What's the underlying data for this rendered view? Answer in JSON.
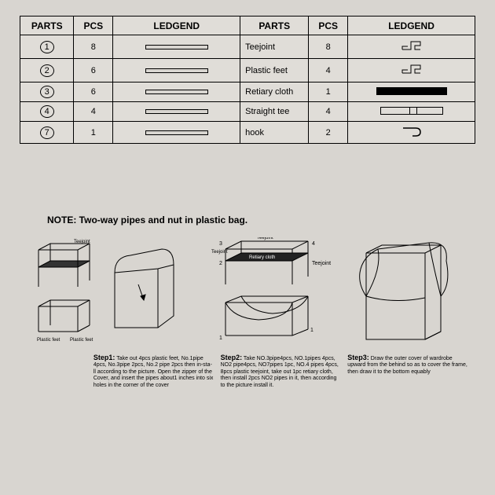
{
  "table": {
    "headers": [
      "PARTS",
      "PCS",
      "LEDGEND",
      "PARTS",
      "PCS",
      "LEDGEND"
    ],
    "rows": [
      {
        "num": "1",
        "pcs": "8",
        "name": "Teejoint",
        "pcs2": "8",
        "legend2": "joint"
      },
      {
        "num": "2",
        "pcs": "6",
        "name": "Plastic feet",
        "pcs2": "4",
        "legend2": "joint"
      },
      {
        "num": "3",
        "pcs": "6",
        "name": "Retiary cloth",
        "pcs2": "1",
        "legend2": "blackbar"
      },
      {
        "num": "4",
        "pcs": "4",
        "name": "Straight tee",
        "pcs2": "4",
        "legend2": "tee"
      },
      {
        "num": "7",
        "pcs": "1",
        "name": "hook",
        "pcs2": "2",
        "legend2": "hook"
      }
    ]
  },
  "note": "NOTE: Two-way pipes and nut in plastic bag.",
  "labels": {
    "teejoint": "Teejoint",
    "plastic_feet": "Plastic feet",
    "retiary_cloth": "Retiary cloth"
  },
  "steps": [
    {
      "label": "Step1:",
      "text": "Take out 4pcs plastic feet, No.1pipe 4pcs, No.3pipe 2pcs, No.2 pipe 2pcs then in-sta-ll according to the picture. Open the zipper of the Cover, and insert the pipes about1 inches into six holes in the corner of the cover"
    },
    {
      "label": "Step2:",
      "text": "Take NO.3pipe4pcs, NO.1pipes 4pcs, NO2 pipe4pcs, NO7pipes 1pc, NO.4 pipes 4pcs, 8pcs plastic teejoint, take out 1pc retiary cloth, then install 2pcs NO2 pipes in it, then according to the picture install it."
    },
    {
      "label": "Step3:",
      "text": "Draw the outer cover of wardrobe upward from the behind so as to cover the frame, then draw it to the bottom equably"
    }
  ],
  "colors": {
    "line": "#000000",
    "bg": "#d8d5d0",
    "fill_dark": "#333333"
  }
}
